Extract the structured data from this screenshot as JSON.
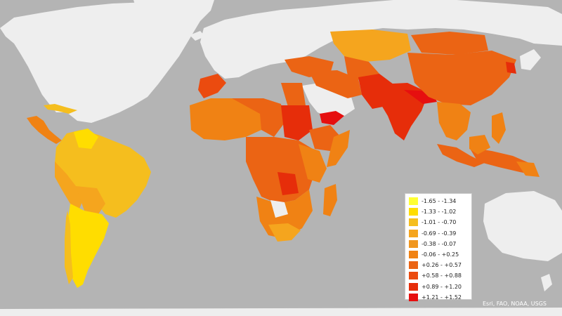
{
  "legend": [
    {
      "label": "-1.65 - -1.34",
      "color": "#ffff33"
    },
    {
      "label": "-1.33 - -1.02",
      "color": "#ffdd00"
    },
    {
      "label": "-1.01 - -0.70",
      "color": "#f5be1e"
    },
    {
      "label": "-0.69 - -0.39",
      "color": "#f5a51e"
    },
    {
      "label": "-0.38 - -0.07",
      "color": "#f0961e"
    },
    {
      "label": "-0.06 - +0.25",
      "color": "#f08214"
    },
    {
      "label": "+0.26 - +0.57",
      "color": "#eb6414"
    },
    {
      "label": "+0.58 - +0.88",
      "color": "#eb4b0f"
    },
    {
      "label": "+0.89 - +1.20",
      "color": "#e62d0a"
    },
    {
      "label": "+1.21 - +1.52",
      "color": "#e60f0f"
    }
  ],
  "attribution": "Esri, FAO, NOAA, USGS",
  "colors": {
    "ocean": "#b4b4b4",
    "no_data_land": "#eeeeee",
    "legend_bg": "#ffffff"
  }
}
